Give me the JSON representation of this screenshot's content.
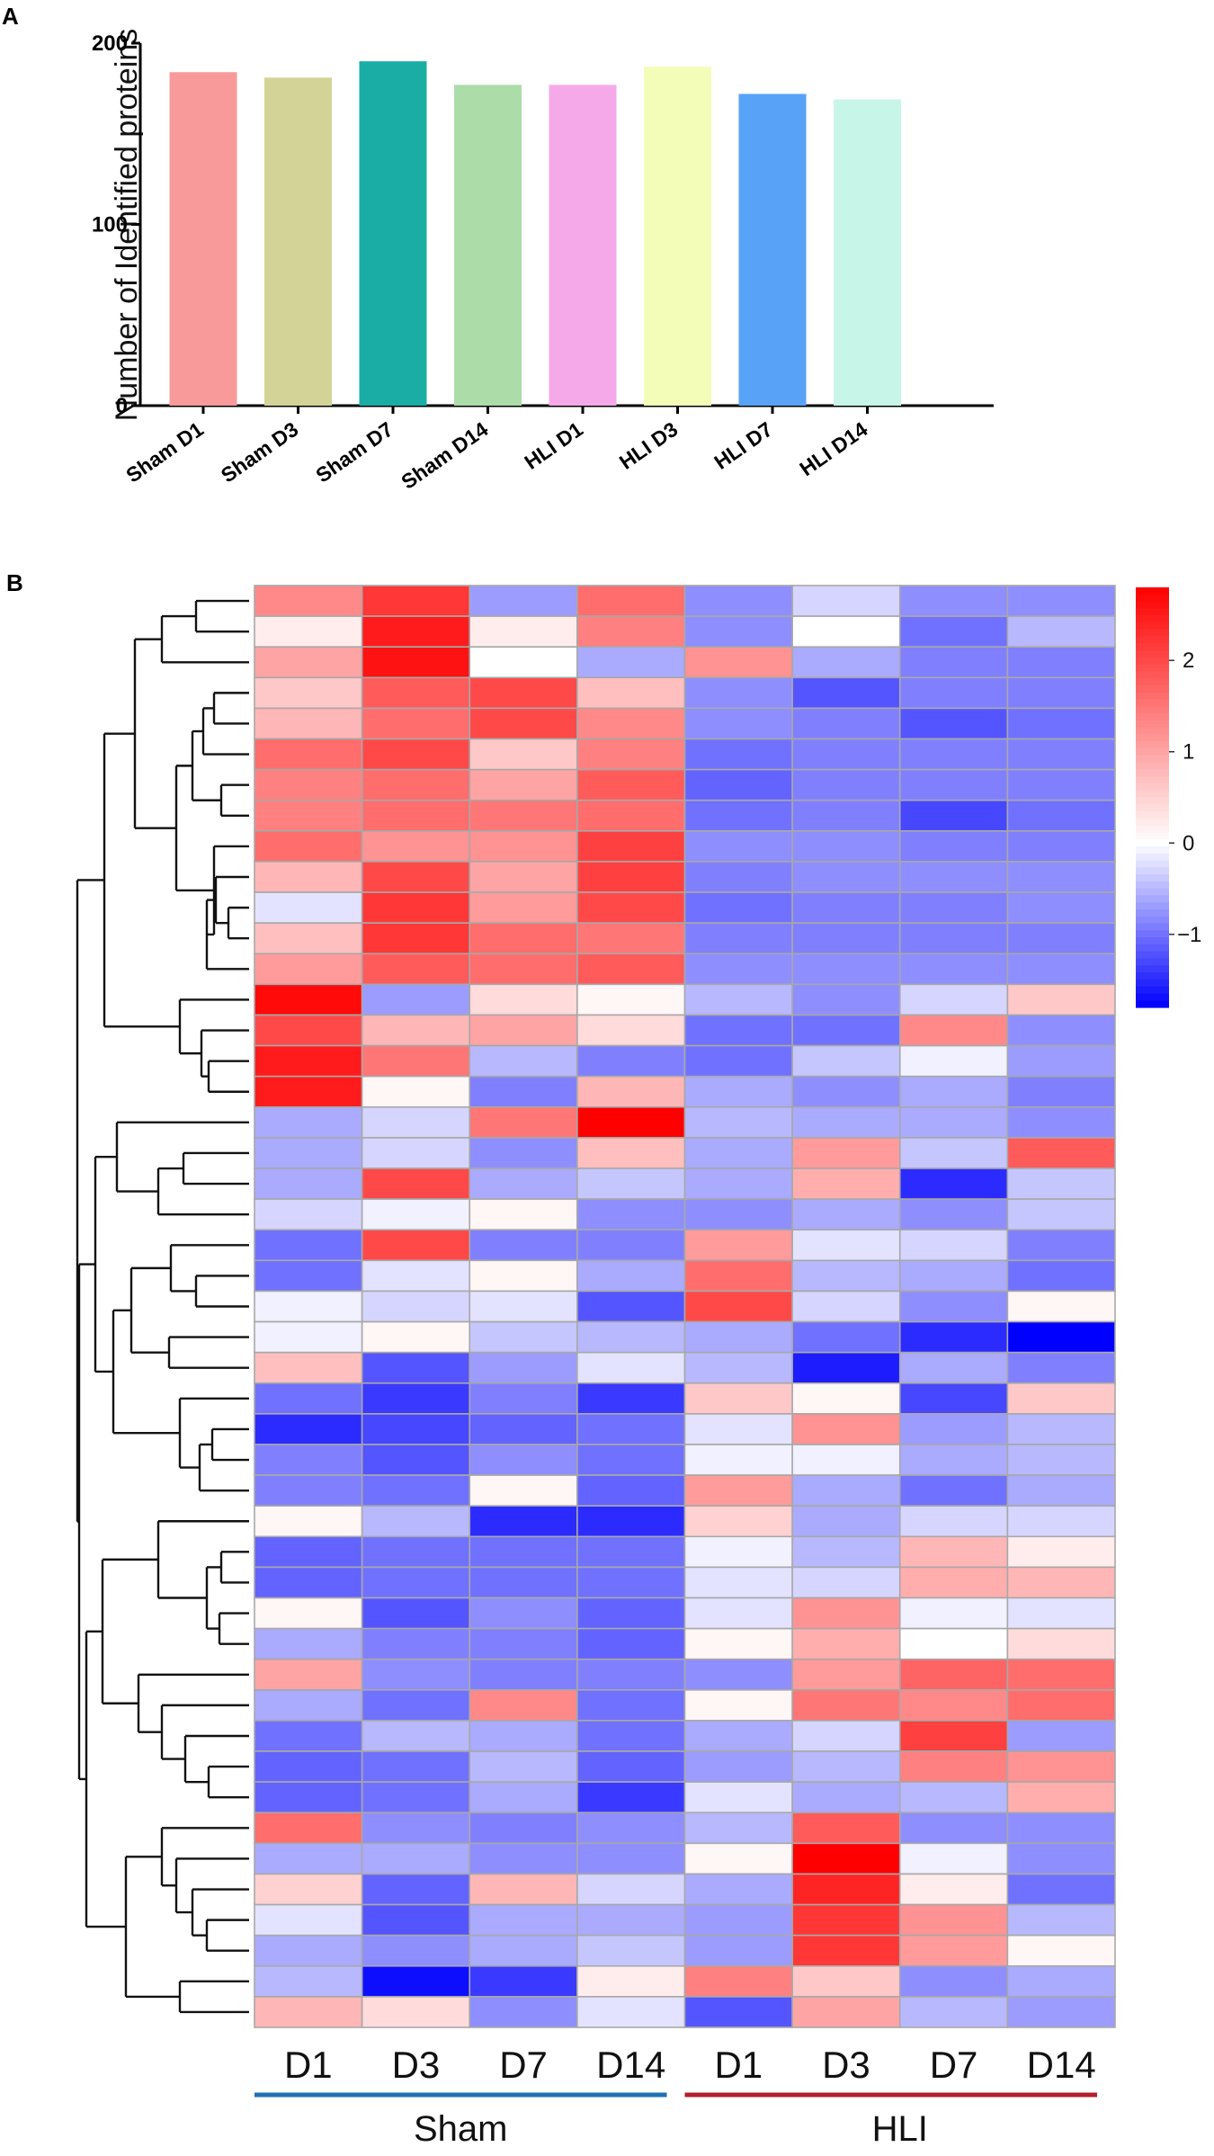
{
  "panel_labels": {
    "a": "A",
    "b": "B"
  },
  "chart_data": [
    {
      "type": "bar",
      "title": "",
      "xlabel": "",
      "ylabel": "Number of Identified proteins",
      "ylim": [
        0,
        200
      ],
      "yticks": [
        0,
        100,
        200
      ],
      "categories": [
        "Sham D1",
        "Sham D3",
        "Sham D7",
        "Sham D14",
        "HLI D1",
        "HLI D3",
        "HLI D7",
        "HLI D14"
      ],
      "values": [
        184,
        181,
        190,
        177,
        177,
        187,
        172,
        169
      ],
      "colors": [
        "#f99a9a",
        "#d3d397",
        "#1aada6",
        "#acdda9",
        "#f5a9e8",
        "#f3fdb8",
        "#58a2f8",
        "#c7f6e9"
      ]
    },
    {
      "type": "heatmap",
      "columns": [
        "D1",
        "D3",
        "D7",
        "D14",
        "D1",
        "D3",
        "D7",
        "D14"
      ],
      "groups": [
        {
          "label": "Sham",
          "color": "#1f6fb4"
        },
        {
          "label": "HLI",
          "color": "#b21e2d"
        }
      ],
      "color_scale": {
        "min": -1.8,
        "max": 2.8,
        "ticks": [
          2,
          1,
          0,
          -1
        ],
        "low": "#0000ff",
        "mid": "#ffffff",
        "high": "#ff0000"
      },
      "values": [
        [
          1.3,
          2.2,
          -0.7,
          1.6,
          -0.8,
          -0.3,
          -0.8,
          -0.8
        ],
        [
          0.2,
          2.5,
          0.2,
          1.4,
          -0.8,
          0.0,
          -1.0,
          -0.5
        ],
        [
          1.0,
          2.6,
          0.0,
          -0.6,
          1.2,
          -0.6,
          -0.9,
          -0.9
        ],
        [
          0.6,
          1.8,
          2.0,
          0.7,
          -0.8,
          -1.2,
          -0.9,
          -0.9
        ],
        [
          0.8,
          1.6,
          2.0,
          1.3,
          -0.8,
          -0.9,
          -1.2,
          -1.0
        ],
        [
          1.6,
          2.0,
          0.6,
          1.4,
          -1.0,
          -0.9,
          -0.9,
          -0.9
        ],
        [
          1.4,
          1.6,
          1.0,
          1.8,
          -1.1,
          -0.9,
          -0.9,
          -0.9
        ],
        [
          1.4,
          1.6,
          1.5,
          1.6,
          -1.0,
          -0.9,
          -1.3,
          -1.0
        ],
        [
          1.6,
          1.2,
          1.2,
          2.1,
          -0.8,
          -0.8,
          -0.9,
          -0.9
        ],
        [
          0.8,
          2.0,
          1.0,
          2.1,
          -0.9,
          -0.8,
          -0.8,
          -0.8
        ],
        [
          -0.2,
          2.2,
          1.1,
          2.0,
          -1.0,
          -0.9,
          -0.9,
          -0.8
        ],
        [
          0.7,
          2.2,
          1.6,
          1.5,
          -0.9,
          -0.9,
          -0.9,
          -0.9
        ],
        [
          1.1,
          1.8,
          1.6,
          1.8,
          -0.8,
          -0.8,
          -0.8,
          -0.8
        ],
        [
          2.7,
          -0.7,
          0.4,
          0.1,
          -0.5,
          -0.8,
          -0.3,
          0.6
        ],
        [
          2.0,
          0.8,
          1.0,
          0.4,
          -1.0,
          -1.0,
          1.3,
          -0.8
        ],
        [
          2.5,
          1.5,
          -0.5,
          -0.9,
          -1.0,
          -0.4,
          -0.1,
          -0.7
        ],
        [
          2.5,
          0.1,
          -0.9,
          0.8,
          -0.6,
          -0.8,
          -0.6,
          -0.9
        ],
        [
          -0.6,
          -0.3,
          1.5,
          2.8,
          -0.5,
          -0.6,
          -0.6,
          -0.8
        ],
        [
          -0.6,
          -0.3,
          -0.8,
          0.7,
          -0.6,
          1.1,
          -0.4,
          1.8
        ],
        [
          -0.6,
          2.0,
          -0.6,
          -0.4,
          -0.6,
          0.9,
          -1.5,
          -0.4
        ],
        [
          -0.3,
          -0.1,
          0.1,
          -0.8,
          -0.8,
          -0.6,
          -0.8,
          -0.4
        ],
        [
          -1.0,
          2.0,
          -0.9,
          -0.9,
          1.1,
          -0.2,
          -0.3,
          -0.9
        ],
        [
          -1.0,
          -0.2,
          0.1,
          -0.6,
          1.6,
          -0.5,
          -0.6,
          -1.0
        ],
        [
          -0.1,
          -0.3,
          -0.2,
          -1.2,
          2.0,
          -0.3,
          -0.8,
          0.1
        ],
        [
          -0.1,
          0.1,
          -0.4,
          -0.5,
          -0.6,
          -1.0,
          -1.5,
          -1.8
        ],
        [
          0.7,
          -1.2,
          -0.7,
          -0.2,
          -0.5,
          -1.6,
          -0.6,
          -0.9
        ],
        [
          -1.0,
          -1.4,
          -0.9,
          -1.4,
          0.6,
          0.1,
          -1.3,
          0.6
        ],
        [
          -1.5,
          -1.3,
          -1.1,
          -1.0,
          -0.2,
          1.2,
          -0.7,
          -0.5
        ],
        [
          -0.9,
          -1.2,
          -0.8,
          -1.0,
          -0.1,
          -0.1,
          -0.6,
          -0.5
        ],
        [
          -0.9,
          -1.0,
          0.1,
          -1.1,
          1.1,
          -0.6,
          -1.0,
          -0.6
        ],
        [
          0.1,
          -0.5,
          -1.5,
          -1.5,
          0.5,
          -0.6,
          -0.3,
          -0.3
        ],
        [
          -1.1,
          -1.0,
          -1.0,
          -1.0,
          -0.1,
          -0.5,
          0.8,
          0.2
        ],
        [
          -1.1,
          -1.0,
          -1.0,
          -1.0,
          -0.2,
          -0.3,
          0.9,
          0.8
        ],
        [
          0.1,
          -1.2,
          -0.8,
          -1.1,
          -0.2,
          1.2,
          -0.1,
          -0.2
        ],
        [
          -0.6,
          -0.9,
          -0.9,
          -1.1,
          0.1,
          0.9,
          0.0,
          0.4
        ],
        [
          1.0,
          -0.8,
          -0.9,
          -0.9,
          -0.8,
          1.1,
          1.7,
          1.6
        ],
        [
          -0.6,
          -1.0,
          1.3,
          -1.0,
          0.1,
          1.5,
          1.3,
          1.6
        ],
        [
          -1.0,
          -0.5,
          -0.6,
          -1.0,
          -0.6,
          -0.3,
          2.1,
          -0.7
        ],
        [
          -1.1,
          -1.0,
          -0.5,
          -1.1,
          -0.7,
          -0.5,
          1.4,
          1.2
        ],
        [
          -1.1,
          -1.0,
          -0.6,
          -1.4,
          -0.2,
          -0.6,
          -0.5,
          0.9
        ],
        [
          1.6,
          -0.8,
          -0.9,
          -0.8,
          -0.5,
          1.8,
          -0.8,
          -0.8
        ],
        [
          -0.6,
          -0.6,
          -0.8,
          -0.8,
          0.1,
          2.8,
          -0.1,
          -0.8
        ],
        [
          0.5,
          -1.1,
          0.8,
          -0.3,
          -0.6,
          2.4,
          0.2,
          -1.0
        ],
        [
          -0.2,
          -1.2,
          -0.6,
          -0.6,
          -0.7,
          2.2,
          1.2,
          -0.5
        ],
        [
          -0.6,
          -0.8,
          -0.6,
          -0.4,
          -0.7,
          2.2,
          1.1,
          0.1
        ],
        [
          -0.5,
          -1.7,
          -1.4,
          0.2,
          1.4,
          0.6,
          -0.8,
          -0.6
        ],
        [
          0.8,
          0.4,
          -0.8,
          -0.2,
          -1.2,
          1.0,
          -0.5,
          -0.7
        ]
      ]
    }
  ]
}
